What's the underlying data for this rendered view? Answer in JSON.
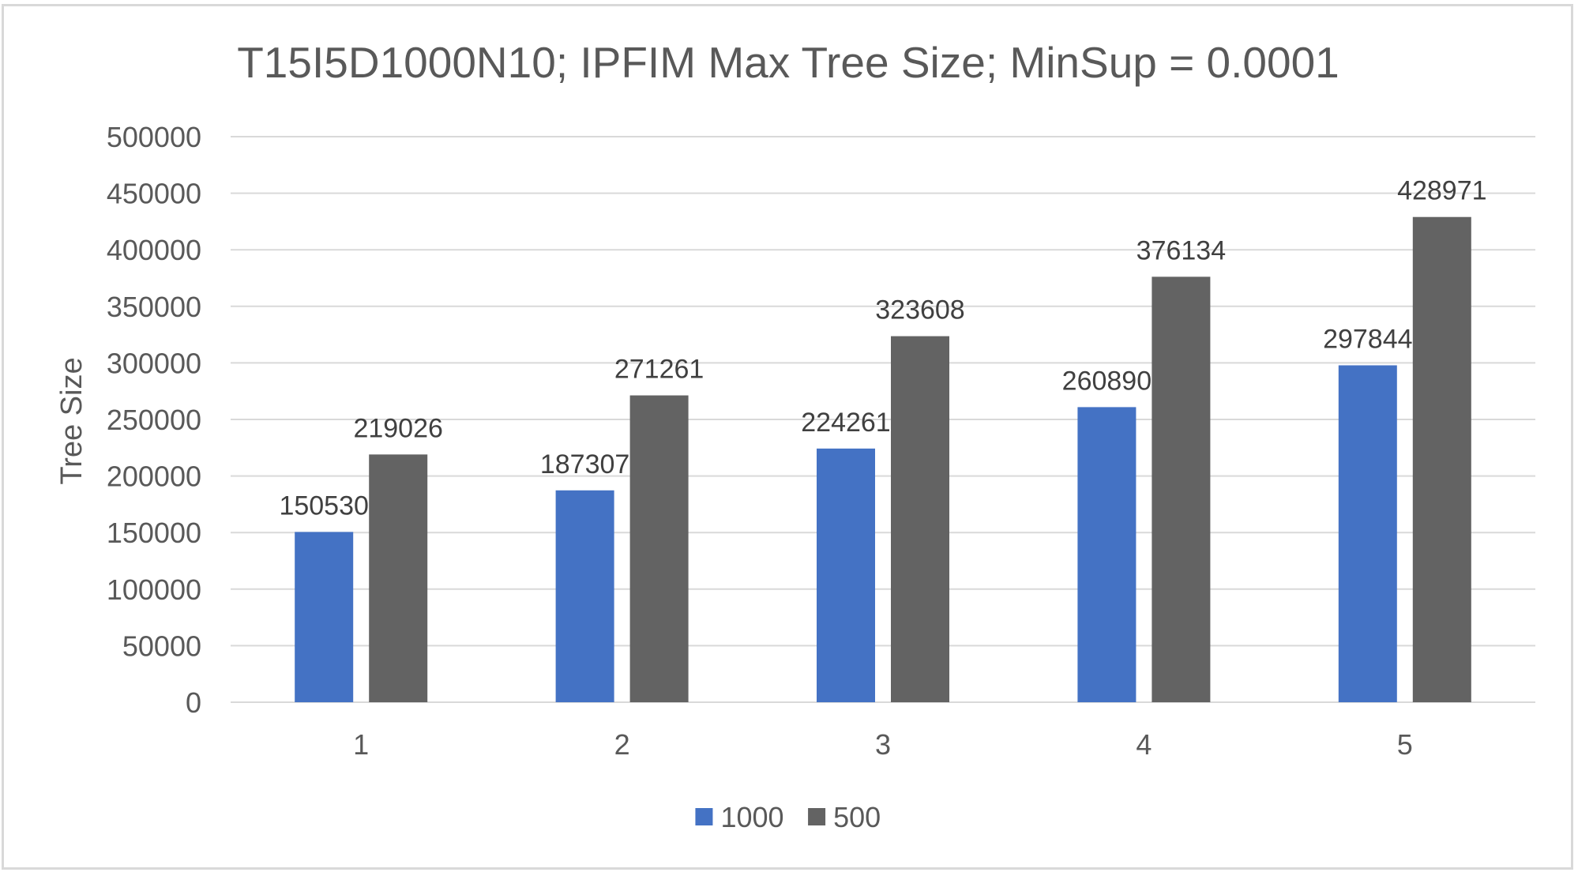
{
  "chart_data": {
    "type": "bar",
    "title": "T15I5D1000N10; IPFIM Max Tree Size; MinSup = 0.0001",
    "xlabel": "",
    "ylabel": "Tree Size",
    "categories": [
      "1",
      "2",
      "3",
      "4",
      "5"
    ],
    "series": [
      {
        "name": "1000",
        "color": "#4472c4",
        "values": [
          150530,
          187307,
          224261,
          260890,
          297844
        ]
      },
      {
        "name": "500",
        "color": "#636363",
        "values": [
          219026,
          271261,
          323608,
          376134,
          428971
        ]
      }
    ],
    "ylim": [
      0,
      500000
    ],
    "yticks": [
      0,
      50000,
      100000,
      150000,
      200000,
      250000,
      300000,
      350000,
      400000,
      450000,
      500000
    ],
    "grid": true,
    "data_labels": true,
    "legend": "bottom"
  },
  "colors": {
    "text": "#595959",
    "title": "#595959",
    "label": "#404040",
    "grid": "#d9d9d9",
    "axis": "#d9d9d9"
  }
}
